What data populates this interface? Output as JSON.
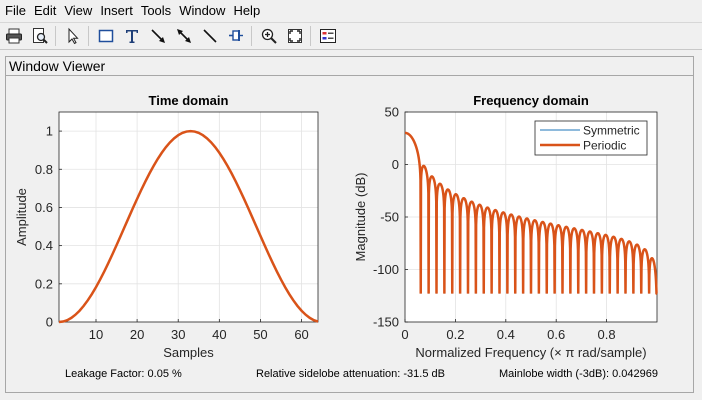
{
  "menu": [
    "File",
    "Edit",
    "View",
    "Insert",
    "Tools",
    "Window",
    "Help"
  ],
  "toolbar": {
    "icons": [
      "print-icon",
      "print-preview-icon",
      "arrow-cursor-icon",
      "rectangle-icon",
      "text-icon",
      "arrow-icon",
      "double-arrow-icon",
      "line-icon",
      "pin-icon",
      "zoom-in-icon",
      "fit-icon",
      "legend-icon"
    ]
  },
  "panel": {
    "title": "Window Viewer"
  },
  "colors": {
    "symmetric": "#4a90c8",
    "periodic": "#d95319"
  },
  "chart_data": [
    {
      "type": "line",
      "title": "Time domain",
      "xlabel": "Samples",
      "ylabel": "Amplitude",
      "xlim": [
        1,
        64
      ],
      "ylim": [
        0,
        1.1
      ],
      "xticks": [
        "10",
        "20",
        "30",
        "40",
        "50",
        "60"
      ],
      "yticks": [
        "0",
        "0.2",
        "0.4",
        "0.6",
        "0.8",
        "1"
      ],
      "grid": true,
      "series": [
        {
          "name": "Periodic",
          "shape": "hann, 64 samples, peak 1 at sample 33"
        }
      ]
    },
    {
      "type": "line",
      "title": "Frequency domain",
      "xlabel": "Normalized Frequency  (× π rad/sample)",
      "ylabel": "Magnitude (dB)",
      "xlim": [
        0,
        1
      ],
      "ylim": [
        -150,
        50
      ],
      "xticks": [
        "0",
        "0.2",
        "0.4",
        "0.6",
        "0.8"
      ],
      "yticks": [
        "50",
        "0",
        "-50",
        "-100",
        "-150"
      ],
      "grid": true,
      "legend": "top-right",
      "series": [
        {
          "name": "Symmetric"
        },
        {
          "name": "Periodic",
          "peak_db": 30.1
        }
      ]
    }
  ],
  "status": {
    "leakage": "Leakage Factor: 0.05 %",
    "sidelobe": "Relative sidelobe attenuation: -31.5 dB",
    "mainlobe": "Mainlobe width (-3dB): 0.042969"
  }
}
